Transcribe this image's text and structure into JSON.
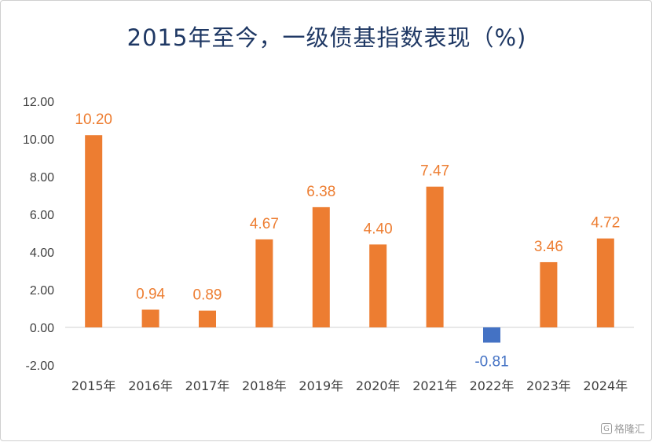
{
  "chart_data": {
    "type": "bar",
    "title": "2015年至今，一级债基指数表现（%)",
    "categories": [
      "2015年",
      "2016年",
      "2017年",
      "2018年",
      "2019年",
      "2020年",
      "2021年",
      "2022年",
      "2023年",
      "2024年"
    ],
    "values": [
      10.2,
      0.94,
      0.89,
      4.67,
      6.38,
      4.4,
      7.47,
      -0.81,
      3.46,
      4.72
    ],
    "value_labels": [
      "10.20",
      "0.94",
      "0.89",
      "4.67",
      "6.38",
      "4.40",
      "7.47",
      "-0.81",
      "3.46",
      "4.72"
    ],
    "yticks": [
      "12.00",
      "10.00",
      "8.00",
      "6.00",
      "4.00",
      "2.00",
      "0.00",
      "-2.00"
    ],
    "ylim": [
      -2,
      12
    ],
    "grid": false,
    "legend": "none",
    "colors": {
      "positive": "#ed7d31",
      "negative": "#4472c4",
      "label_positive": "#ed7d31",
      "label_negative": "#4472c4"
    }
  },
  "watermark": {
    "logo": "G",
    "text": "格隆汇"
  }
}
